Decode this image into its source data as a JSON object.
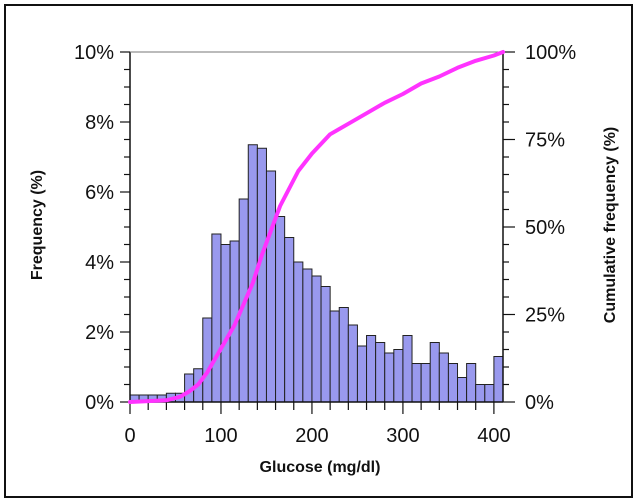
{
  "chart_data": {
    "type": "bar",
    "title": "",
    "xlabel": "Glucose (mg/dl)",
    "ylabel": "Frequency (%)",
    "y2label": "Cumulative frequency (%)",
    "xlim": [
      0,
      410
    ],
    "ylim": [
      0,
      10
    ],
    "y2lim": [
      0,
      100
    ],
    "x_ticks": [
      "0",
      "100",
      "200",
      "300",
      "400"
    ],
    "y_ticks": [
      "0%",
      "2%",
      "4%",
      "6%",
      "8%",
      "10%"
    ],
    "y2_ticks": [
      "0%",
      "25%",
      "50%",
      "75%",
      "100%"
    ],
    "bin_width": 10,
    "bins_start": [
      0,
      10,
      20,
      30,
      40,
      50,
      60,
      70,
      80,
      90,
      100,
      110,
      120,
      130,
      140,
      150,
      160,
      170,
      180,
      190,
      200,
      210,
      220,
      230,
      240,
      250,
      260,
      270,
      280,
      290,
      300,
      310,
      320,
      330,
      340,
      350,
      360,
      370,
      380,
      390,
      400
    ],
    "series": [
      {
        "values": [
          0.2,
          0.2,
          0.2,
          0.2,
          0.25,
          0.25,
          0.8,
          0.95,
          2.4,
          4.8,
          4.5,
          4.6,
          5.8,
          7.35,
          7.25,
          6.6,
          5.3,
          4.7,
          4.0,
          3.8,
          3.6,
          3.3,
          2.6,
          2.7,
          2.2,
          1.6,
          1.9,
          1.7,
          1.4,
          1.5,
          1.9,
          1.1,
          1.1,
          1.7,
          1.4,
          1.1,
          0.7,
          1.1,
          0.5,
          0.5,
          1.3
        ],
        "color": "#9999ee"
      },
      {
        "x": [
          0,
          40,
          55,
          65,
          75,
          85,
          95,
          105,
          115,
          125,
          135,
          145,
          155,
          165,
          175,
          185,
          200,
          220,
          240,
          260,
          280,
          300,
          320,
          340,
          360,
          380,
          400,
          410
        ],
        "values": [
          0,
          0.5,
          1.5,
          3,
          5,
          8.5,
          13,
          17.5,
          22,
          28,
          34,
          42,
          49,
          56,
          61,
          66,
          71,
          76.5,
          79.5,
          82.5,
          85.5,
          88,
          91,
          93,
          95.5,
          97.5,
          99,
          100
        ],
        "color": "#ff33ff"
      }
    ],
    "grid": false,
    "legend": "none"
  }
}
